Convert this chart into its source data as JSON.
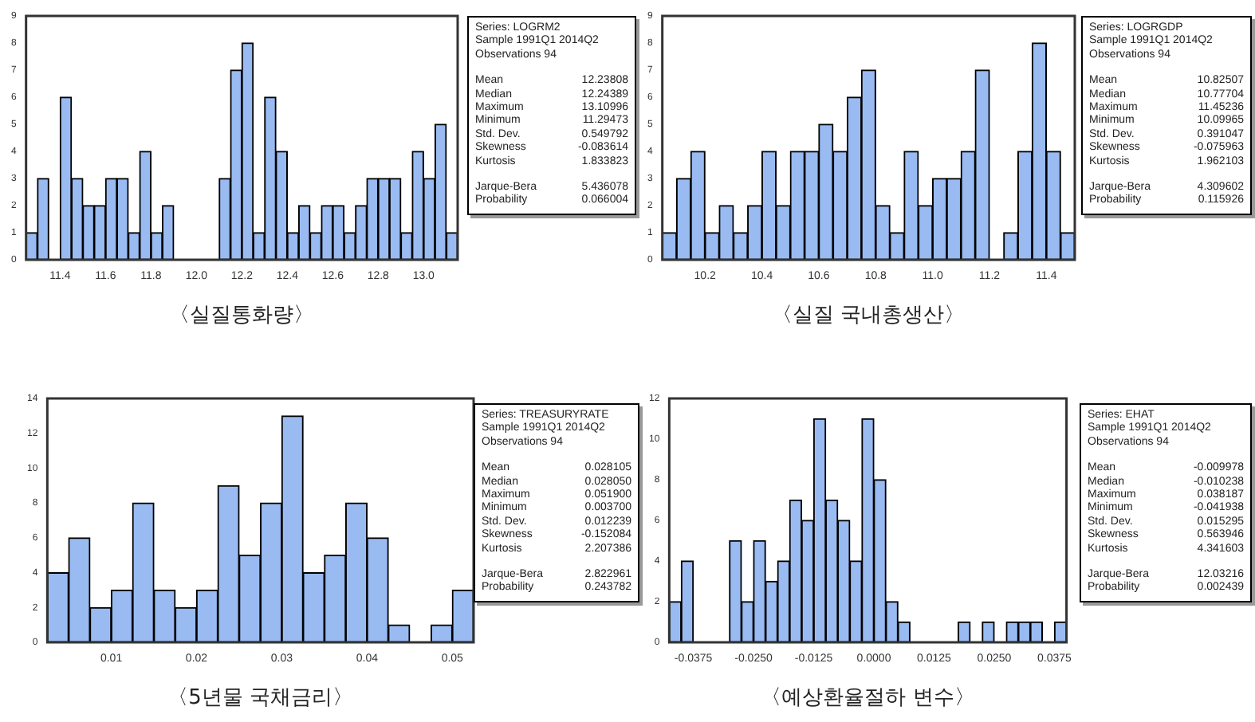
{
  "chart_data": [
    {
      "type": "histogram",
      "xlabel": "〈실질통화량〉",
      "color": "#99bbf2",
      "grid": false,
      "bins": [
        11.25,
        11.3,
        11.35,
        11.4,
        11.45,
        11.5,
        11.55,
        11.6,
        11.65,
        11.7,
        11.75,
        11.8,
        11.85,
        11.9,
        11.95,
        12.0,
        12.05,
        12.1,
        12.15,
        12.2,
        12.25,
        12.3,
        12.35,
        12.4,
        12.45,
        12.5,
        12.55,
        12.6,
        12.65,
        12.7,
        12.75,
        12.8,
        12.85,
        12.9,
        12.95,
        13.0,
        13.05,
        13.1,
        13.15
      ],
      "values": [
        1,
        3,
        0,
        6,
        3,
        2,
        2,
        3,
        3,
        1,
        4,
        1,
        2,
        0,
        0,
        0,
        0,
        3,
        7,
        8,
        1,
        6,
        4,
        1,
        2,
        1,
        2,
        2,
        1,
        2,
        3,
        3,
        3,
        1,
        4,
        3,
        5,
        1
      ],
      "xlim": [
        11.25,
        13.15
      ],
      "xticks": [
        11.4,
        11.6,
        11.8,
        {
          "value": 12,
          "label": "12.0"
        },
        12.2,
        12.4,
        12.6,
        12.8,
        {
          "value": 13,
          "label": "13.0"
        }
      ],
      "ylim": [
        0,
        9
      ],
      "yticks": [
        0,
        1,
        2,
        3,
        4,
        5,
        6,
        7,
        8,
        9
      ],
      "annotations": [
        "Series: LOGRM2",
        "Sample 1991Q1 2014Q2",
        "Observations 94",
        "Mean",
        "12.23808",
        "Median",
        "12.24389",
        "Maximum",
        "13.10996",
        "Minimum",
        "11.29473",
        "Std. Dev.",
        "0.549792",
        "Skewness",
        "-0.083614",
        "Kurtosis",
        "1.833823",
        "Jarque-Bera",
        "5.436078",
        "Probability",
        "0.066004"
      ]
    },
    {
      "type": "histogram",
      "xlabel": "〈실질 국내총생산〉",
      "color": "#99bbf2",
      "grid": false,
      "bins": [
        10.05,
        10.1,
        10.15,
        10.2,
        10.25,
        10.3,
        10.35,
        10.4,
        10.45,
        10.5,
        10.55,
        10.6,
        10.65,
        10.7,
        10.75,
        10.8,
        10.85,
        10.9,
        10.95,
        11.0,
        11.05,
        11.1,
        11.15,
        11.2,
        11.25,
        11.3,
        11.35,
        11.4,
        11.45,
        11.5
      ],
      "values": [
        1,
        3,
        4,
        1,
        2,
        1,
        2,
        4,
        2,
        4,
        4,
        5,
        4,
        6,
        7,
        2,
        1,
        4,
        2,
        3,
        3,
        4,
        7,
        0,
        1,
        4,
        8,
        4,
        1
      ],
      "xlim": [
        10.05,
        11.5
      ],
      "xticks": [
        10.2,
        10.4,
        10.6,
        10.8,
        {
          "value": 11,
          "label": "11.0"
        },
        11.2,
        11.4
      ],
      "ylim": [
        0,
        9
      ],
      "yticks": [
        0,
        1,
        2,
        3,
        4,
        5,
        6,
        7,
        8,
        9
      ],
      "annotations": [
        "Series: LOGRGDP",
        "Sample 1991Q1 2014Q2",
        "Observations 94",
        "Mean",
        "10.82507",
        "Median",
        "10.77704",
        "Maximum",
        "11.45236",
        "Minimum",
        "10.09965",
        "Std. Dev.",
        "0.391047",
        "Skewness",
        "-0.075963",
        "Kurtosis",
        "1.962103",
        "Jarque-Bera",
        "4.309602",
        "Probability",
        "0.115926"
      ]
    },
    {
      "type": "histogram",
      "xlabel": "〈5년물 국채금리〉",
      "color": "#99bbf2",
      "grid": false,
      "bins": [
        0.0025,
        0.005,
        0.0075,
        0.01,
        0.0125,
        0.015,
        0.0175,
        0.02,
        0.0225,
        0.025,
        0.0275,
        0.03,
        0.0325,
        0.035,
        0.0375,
        0.04,
        0.0425,
        0.045,
        0.0475,
        0.05,
        0.0525
      ],
      "values": [
        4,
        6,
        2,
        3,
        8,
        3,
        2,
        3,
        9,
        5,
        8,
        13,
        4,
        5,
        8,
        6,
        1,
        0,
        1,
        3
      ],
      "xlim": [
        0.0025,
        0.0525
      ],
      "xticks": [
        0.01,
        0.02,
        0.03,
        0.04,
        0.05
      ],
      "ylim": [
        0,
        14
      ],
      "yticks": [
        0,
        2,
        4,
        6,
        8,
        10,
        12,
        14
      ],
      "annotations": [
        "Series: TREASURYRATE",
        "Sample 1991Q1 2014Q2",
        "Observations 94",
        "Mean",
        "0.028105",
        "Median",
        "0.028050",
        "Maximum",
        "0.051900",
        "Minimum",
        "0.003700",
        "Std. Dev.",
        "0.012239",
        "Skewness",
        "-0.152084",
        "Kurtosis",
        "2.207386",
        "Jarque-Bera",
        "2.822961",
        "Probability",
        "0.243782"
      ]
    },
    {
      "type": "histogram",
      "xlabel": "〈예상환율절하 변수〉",
      "color": "#99bbf2",
      "grid": false,
      "bins": [
        -0.0425,
        -0.04,
        -0.0375,
        -0.035,
        -0.0325,
        -0.03,
        -0.0275,
        -0.025,
        -0.0225,
        -0.02,
        -0.0175,
        -0.015,
        -0.0125,
        -0.01,
        -0.0075,
        -0.005,
        -0.0025,
        0,
        0.0025,
        0.005,
        0.0075,
        0.01,
        0.0125,
        0.015,
        0.0175,
        0.02,
        0.0225,
        0.025,
        0.0275,
        0.03,
        0.0325,
        0.035,
        0.0375,
        0.04
      ],
      "values": [
        2,
        4,
        0,
        0,
        0,
        5,
        2,
        5,
        3,
        4,
        7,
        6,
        11,
        7,
        6,
        4,
        11,
        8,
        2,
        1,
        0,
        0,
        0,
        0,
        1,
        0,
        1,
        0,
        1,
        1,
        1,
        0,
        1
      ],
      "xlim": [
        -0.0425,
        0.04
      ],
      "xticks": [
        {
          "value": -0.0375,
          "label": "-0.0375"
        },
        {
          "value": -0.025,
          "label": "-0.0250"
        },
        {
          "value": -0.0125,
          "label": "-0.0125"
        },
        {
          "value": 0,
          "label": "0.0000"
        },
        {
          "value": 0.0125,
          "label": "0.0125"
        },
        {
          "value": 0.025,
          "label": "0.0250"
        },
        {
          "value": 0.0375,
          "label": "0.0375"
        }
      ],
      "ylim": [
        0,
        12
      ],
      "yticks": [
        0,
        2,
        4,
        6,
        8,
        10,
        12
      ],
      "annotations": [
        "Series: EHAT",
        "Sample 1991Q1 2014Q2",
        "Observations 94",
        "Mean",
        "-0.009978",
        "Median",
        "-0.010238",
        "Maximum",
        "0.038187",
        "Minimum",
        "-0.041938",
        "Std. Dev.",
        "0.015295",
        "Skewness",
        "0.563946",
        "Kurtosis",
        "4.341603",
        "Jarque-Bera",
        "12.03216",
        "Probability",
        "0.002439"
      ]
    }
  ]
}
